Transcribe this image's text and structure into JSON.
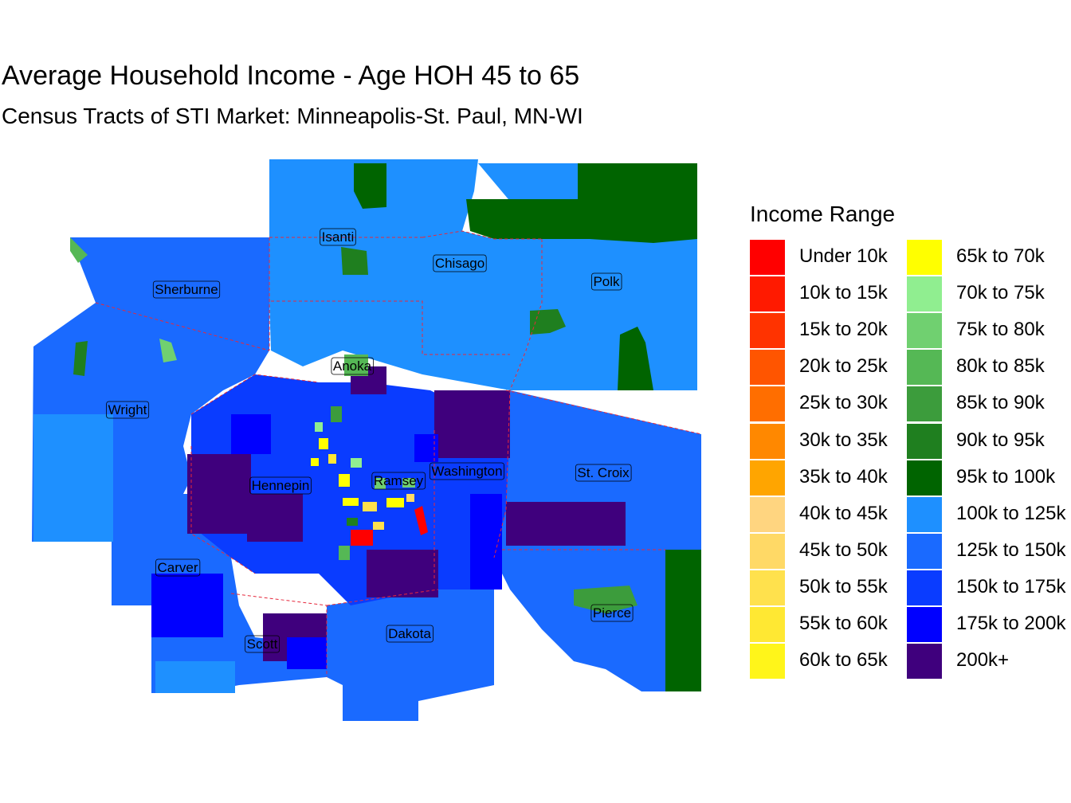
{
  "title": "Average Household Income - Age HOH 45 to 65",
  "subtitle": "Census Tracts of STI Market: Minneapolis-St. Paul, MN-WI",
  "legend": {
    "title": "Income Range",
    "items": [
      {
        "label": "Under 10k",
        "color": "#ff0000"
      },
      {
        "label": "10k to 15k",
        "color": "#ff1a00"
      },
      {
        "label": "15k to 20k",
        "color": "#ff3300"
      },
      {
        "label": "20k to 25k",
        "color": "#ff5500"
      },
      {
        "label": "25k to 30k",
        "color": "#ff6e00"
      },
      {
        "label": "30k to 35k",
        "color": "#ff8800"
      },
      {
        "label": "35k to 40k",
        "color": "#ffa500"
      },
      {
        "label": "40k to 45k",
        "color": "#ffd580"
      },
      {
        "label": "45k to 50k",
        "color": "#ffd966"
      },
      {
        "label": "50k to 55k",
        "color": "#ffe14d"
      },
      {
        "label": "55k to 60k",
        "color": "#ffe833"
      },
      {
        "label": "60k to 65k",
        "color": "#fff51a"
      },
      {
        "label": "65k to 70k",
        "color": "#ffff00"
      },
      {
        "label": "70k to 75k",
        "color": "#90ee90"
      },
      {
        "label": "75k to 80k",
        "color": "#70d070"
      },
      {
        "label": "80k to 85k",
        "color": "#55b855"
      },
      {
        "label": "85k to 90k",
        "color": "#3c9c3c"
      },
      {
        "label": "90k to 95k",
        "color": "#1f7f1f"
      },
      {
        "label": "95k to 100k",
        "color": "#006400"
      },
      {
        "label": "100k to 125k",
        "color": "#1e90ff"
      },
      {
        "label": "125k to 150k",
        "color": "#1a6aff"
      },
      {
        "label": "150k to 175k",
        "color": "#0a3cff"
      },
      {
        "label": "175k to 200k",
        "color": "#0000ff"
      },
      {
        "label": "200k+",
        "color": "#3f007d"
      }
    ]
  },
  "counties": [
    "Isanti",
    "Chisago",
    "Polk",
    "Sherburne",
    "Anoka",
    "Wright",
    "Hennepin",
    "Ramsey",
    "Washington",
    "St. Croix",
    "Carver",
    "Pierce",
    "Scott",
    "Dakota"
  ]
}
